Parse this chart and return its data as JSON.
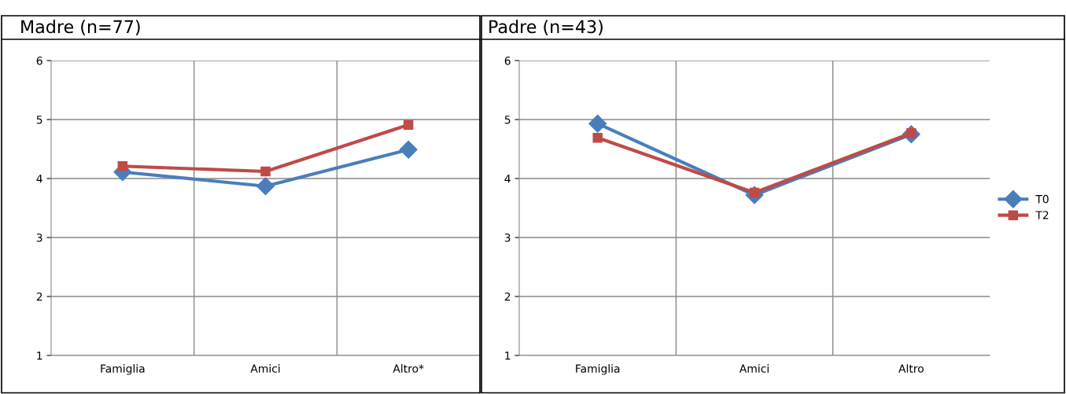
{
  "chart_data": [
    {
      "type": "line",
      "title": "Madre (n=77)",
      "categories": [
        "Famiglia",
        "Amici",
        "Altro*"
      ],
      "ylim": [
        1,
        6
      ],
      "yticks": [
        1,
        2,
        3,
        4,
        5,
        6
      ],
      "grid": true,
      "legend": false,
      "series": [
        {
          "color": "#4a7ebb",
          "marker": "diamond",
          "values": [
            4.11,
            3.87,
            4.49
          ]
        },
        {
          "color": "#be4b48",
          "marker": "square",
          "values": [
            4.21,
            4.12,
            4.91
          ]
        }
      ]
    },
    {
      "type": "line",
      "title": "Padre (n=43)",
      "categories": [
        "Famiglia",
        "Amici",
        "Altro"
      ],
      "ylim": [
        1,
        6
      ],
      "yticks": [
        1,
        2,
        3,
        4,
        5,
        6
      ],
      "grid": true,
      "legend": "right",
      "series": [
        {
          "name": "T0",
          "color": "#4a7ebb",
          "marker": "diamond",
          "values": [
            4.93,
            3.72,
            4.75
          ]
        },
        {
          "name": "T2",
          "color": "#be4b48",
          "marker": "square",
          "values": [
            4.69,
            3.76,
            4.77
          ]
        }
      ]
    }
  ]
}
